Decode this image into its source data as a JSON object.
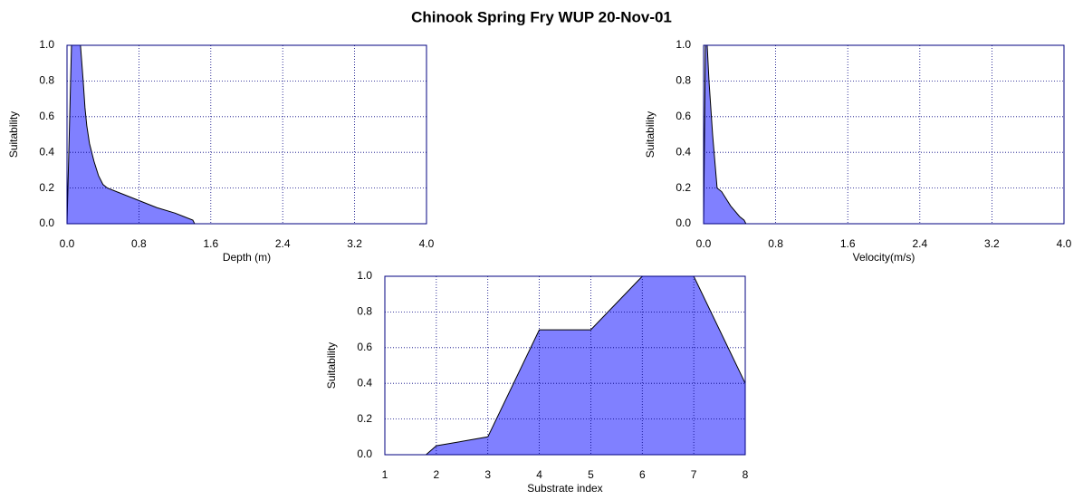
{
  "title": "Chinook Spring Fry WUP 20-Nov-01",
  "chart_data": [
    {
      "type": "area",
      "xlabel": "Depth (m)",
      "ylabel": "Suitability",
      "color": "#8080ff",
      "grid": true,
      "x": [
        0,
        0.05,
        0.15,
        0.18,
        0.2,
        0.22,
        0.25,
        0.3,
        0.35,
        0.4,
        0.45,
        0.6,
        0.8,
        1.0,
        1.2,
        1.3,
        1.4,
        1.42
      ],
      "values": [
        0,
        1.0,
        1.0,
        0.8,
        0.65,
        0.55,
        0.45,
        0.35,
        0.27,
        0.22,
        0.2,
        0.17,
        0.13,
        0.09,
        0.06,
        0.04,
        0.02,
        0
      ],
      "xlim": [
        0,
        4
      ],
      "xticks": [
        {
          "value": 0,
          "label": "0.0"
        },
        {
          "value": 0.8,
          "label": "0.8"
        },
        {
          "value": 1.6,
          "label": "1.6"
        },
        {
          "value": 2.4,
          "label": "2.4"
        },
        {
          "value": 3.2,
          "label": "3.2"
        },
        {
          "value": 4,
          "label": "4.0"
        }
      ],
      "ylim": [
        0,
        1
      ],
      "yticks": [
        {
          "value": 0,
          "label": "0.0"
        },
        {
          "value": 0.2,
          "label": "0.2"
        },
        {
          "value": 0.4,
          "label": "0.4"
        },
        {
          "value": 0.6,
          "label": "0.6"
        },
        {
          "value": 0.8,
          "label": "0.8"
        },
        {
          "value": 1,
          "label": "1.0"
        }
      ]
    },
    {
      "type": "area",
      "xlabel": "Velocity(m/s)",
      "ylabel": "Suitability",
      "color": "#8080ff",
      "grid": true,
      "x": [
        0,
        0.02,
        0.04,
        0.06,
        0.1,
        0.15,
        0.2,
        0.3,
        0.4,
        0.45,
        0.47
      ],
      "values": [
        0,
        1.0,
        1.0,
        0.8,
        0.5,
        0.2,
        0.18,
        0.1,
        0.04,
        0.02,
        0
      ],
      "xlim": [
        0,
        4
      ],
      "xticks": [
        {
          "value": 0,
          "label": "0.0"
        },
        {
          "value": 0.8,
          "label": "0.8"
        },
        {
          "value": 1.6,
          "label": "1.6"
        },
        {
          "value": 2.4,
          "label": "2.4"
        },
        {
          "value": 3.2,
          "label": "3.2"
        },
        {
          "value": 4,
          "label": "4.0"
        }
      ],
      "ylim": [
        0,
        1
      ],
      "yticks": [
        {
          "value": 0,
          "label": "0.0"
        },
        {
          "value": 0.2,
          "label": "0.2"
        },
        {
          "value": 0.4,
          "label": "0.4"
        },
        {
          "value": 0.6,
          "label": "0.6"
        },
        {
          "value": 0.8,
          "label": "0.8"
        },
        {
          "value": 1,
          "label": "1.0"
        }
      ]
    },
    {
      "type": "area",
      "xlabel": "Substrate index",
      "ylabel": "Suitability",
      "color": "#8080ff",
      "grid": true,
      "x": [
        1.8,
        2,
        3,
        4,
        5,
        6,
        7,
        8
      ],
      "values": [
        0,
        0.05,
        0.1,
        0.7,
        0.7,
        1.0,
        1.0,
        0.4
      ],
      "xlim": [
        1,
        8
      ],
      "xticks": [
        1,
        2,
        3,
        4,
        5,
        6,
        7,
        8
      ],
      "ylim": [
        0,
        1
      ],
      "yticks": [
        {
          "value": 0,
          "label": "0.0"
        },
        {
          "value": 0.2,
          "label": "0.2"
        },
        {
          "value": 0.4,
          "label": "0.4"
        },
        {
          "value": 0.6,
          "label": "0.6"
        },
        {
          "value": 0.8,
          "label": "0.8"
        },
        {
          "value": 1,
          "label": "1.0"
        }
      ]
    }
  ]
}
